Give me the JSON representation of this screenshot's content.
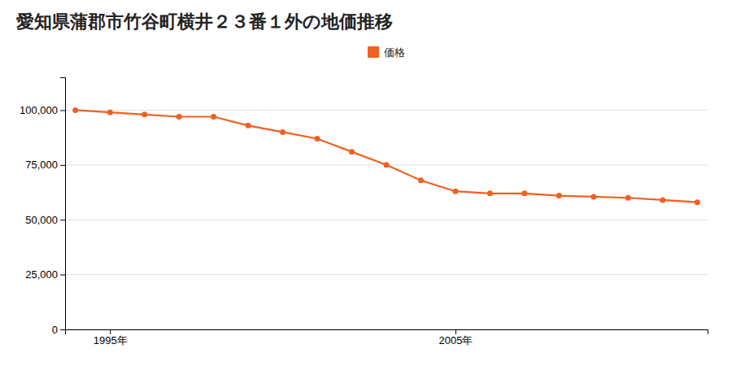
{
  "chart_data": {
    "type": "line",
    "title": "愛知県蒲郡市竹谷町横井２３番１外の地価推移",
    "x": [
      1994,
      1995,
      1996,
      1997,
      1998,
      1999,
      2000,
      2001,
      2002,
      2003,
      2004,
      2005,
      2006,
      2007,
      2008,
      2009,
      2010,
      2011,
      2012
    ],
    "series": [
      {
        "name": "価格",
        "color": "#f06020",
        "marker": "circle",
        "values": [
          100000,
          99000,
          98000,
          97000,
          97000,
          93000,
          90000,
          87000,
          81000,
          75000,
          68000,
          63000,
          62000,
          62000,
          61000,
          60500,
          60000,
          59000,
          58000
        ]
      }
    ],
    "xlim": [
      1993.7,
      2012.3
    ],
    "xticks": [
      {
        "value": 1995,
        "label": "1995年"
      },
      {
        "value": 2005,
        "label": "2005年"
      }
    ],
    "ylim": [
      0,
      115000
    ],
    "yticks": [
      0,
      {
        "value": 25000,
        "label": "25,000"
      },
      {
        "value": 50000,
        "label": "50,000"
      },
      {
        "value": 75000,
        "label": "75,000"
      },
      {
        "value": 100000,
        "label": "100,000"
      }
    ],
    "grid": true,
    "legend": "top"
  }
}
